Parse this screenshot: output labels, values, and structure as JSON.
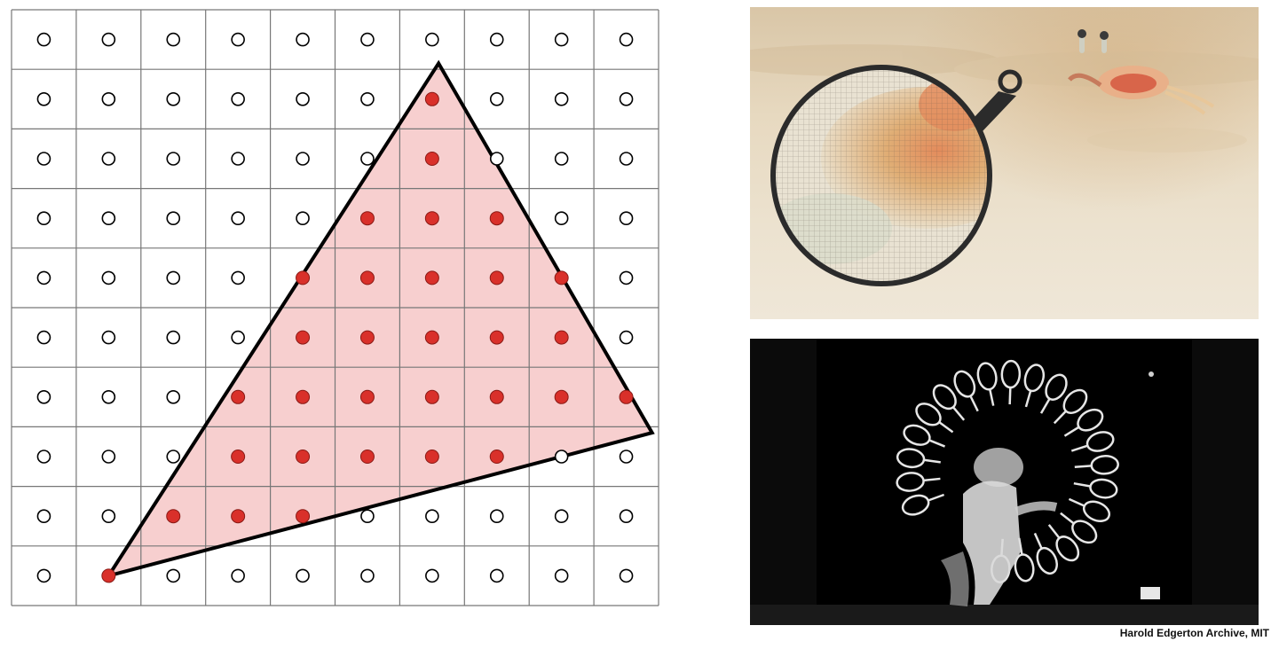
{
  "diagram": {
    "grid": {
      "columns": 10,
      "rows": 10
    },
    "triangle": {
      "vertices": [
        [
          1.5,
          9.5
        ],
        [
          6.6,
          0.9
        ],
        [
          9.9,
          7.1
        ]
      ],
      "fill": "#f7cfcf",
      "stroke": "#000000"
    },
    "colors": {
      "inside_sample": "#d9302a",
      "outside_sample": "#ffffff",
      "grid_line": "#777777"
    }
  },
  "photos": {
    "crab": {
      "subject": "ghost crab on sand with magnifier",
      "magnifier_color": "#2b2b2b"
    },
    "tennis": {
      "subject": "stroboscopic tennis serve"
    }
  },
  "credit": "Harold Edgerton Archive, MIT"
}
